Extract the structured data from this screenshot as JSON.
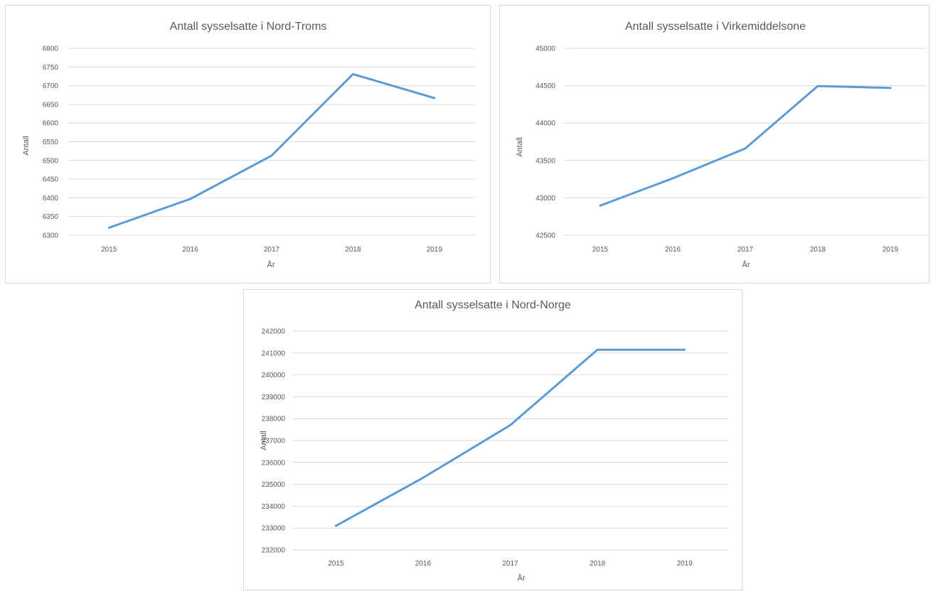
{
  "colors": {
    "series": "#5b9bd5",
    "grid": "#d9d9d9",
    "text": "#595959",
    "border": "#d9d9d9"
  },
  "chart_data": [
    {
      "type": "line",
      "title": "Antall sysselsatte i Nord-Troms",
      "xlabel": "År",
      "ylabel": "Antall",
      "categories": [
        "2015",
        "2016",
        "2017",
        "2018",
        "2019"
      ],
      "series": [
        {
          "values": [
            6320,
            6397,
            6513,
            6731,
            6667
          ]
        }
      ],
      "ylim": [
        6300,
        6800
      ],
      "yticks": [
        6300,
        6350,
        6400,
        6450,
        6500,
        6550,
        6600,
        6650,
        6700,
        6750,
        6800
      ],
      "ytick_labels": [
        "6300",
        "6350",
        "6400",
        "6450",
        "6500",
        "6550",
        "6600",
        "6650",
        "6700",
        "6750",
        "6800"
      ],
      "grid": true,
      "legend": "none"
    },
    {
      "type": "line",
      "title": "Antall sysselsatte i Virkemiddelsone",
      "xlabel": "År",
      "ylabel": "Antall",
      "categories": [
        "2015",
        "2016",
        "2017",
        "2018",
        "2019"
      ],
      "series": [
        {
          "values": [
            42895,
            43260,
            43660,
            44495,
            44470
          ]
        }
      ],
      "ylim": [
        42500,
        45000
      ],
      "yticks": [
        42500,
        43000,
        43500,
        44000,
        44500,
        45000
      ],
      "ytick_labels": [
        "42500",
        "43000",
        "43500",
        "44000",
        "44500",
        "45000"
      ],
      "grid": true,
      "legend": "none"
    },
    {
      "type": "line",
      "title": "Antall sysselsatte i Nord-Norge",
      "xlabel": "År",
      "ylabel": "Antall",
      "categories": [
        "2015",
        "2016",
        "2017",
        "2018",
        "2019"
      ],
      "series": [
        {
          "values": [
            233100,
            235300,
            237700,
            241150,
            241150
          ]
        }
      ],
      "ylim": [
        232000,
        242000
      ],
      "yticks": [
        232000,
        233000,
        234000,
        235000,
        236000,
        237000,
        238000,
        239000,
        240000,
        241000,
        242000
      ],
      "ytick_labels": [
        "232000",
        "233000",
        "234000",
        "235000",
        "236000",
        "237000",
        "238000",
        "239000",
        "240000",
        "241000",
        "242000"
      ],
      "grid": true,
      "legend": "none"
    }
  ]
}
